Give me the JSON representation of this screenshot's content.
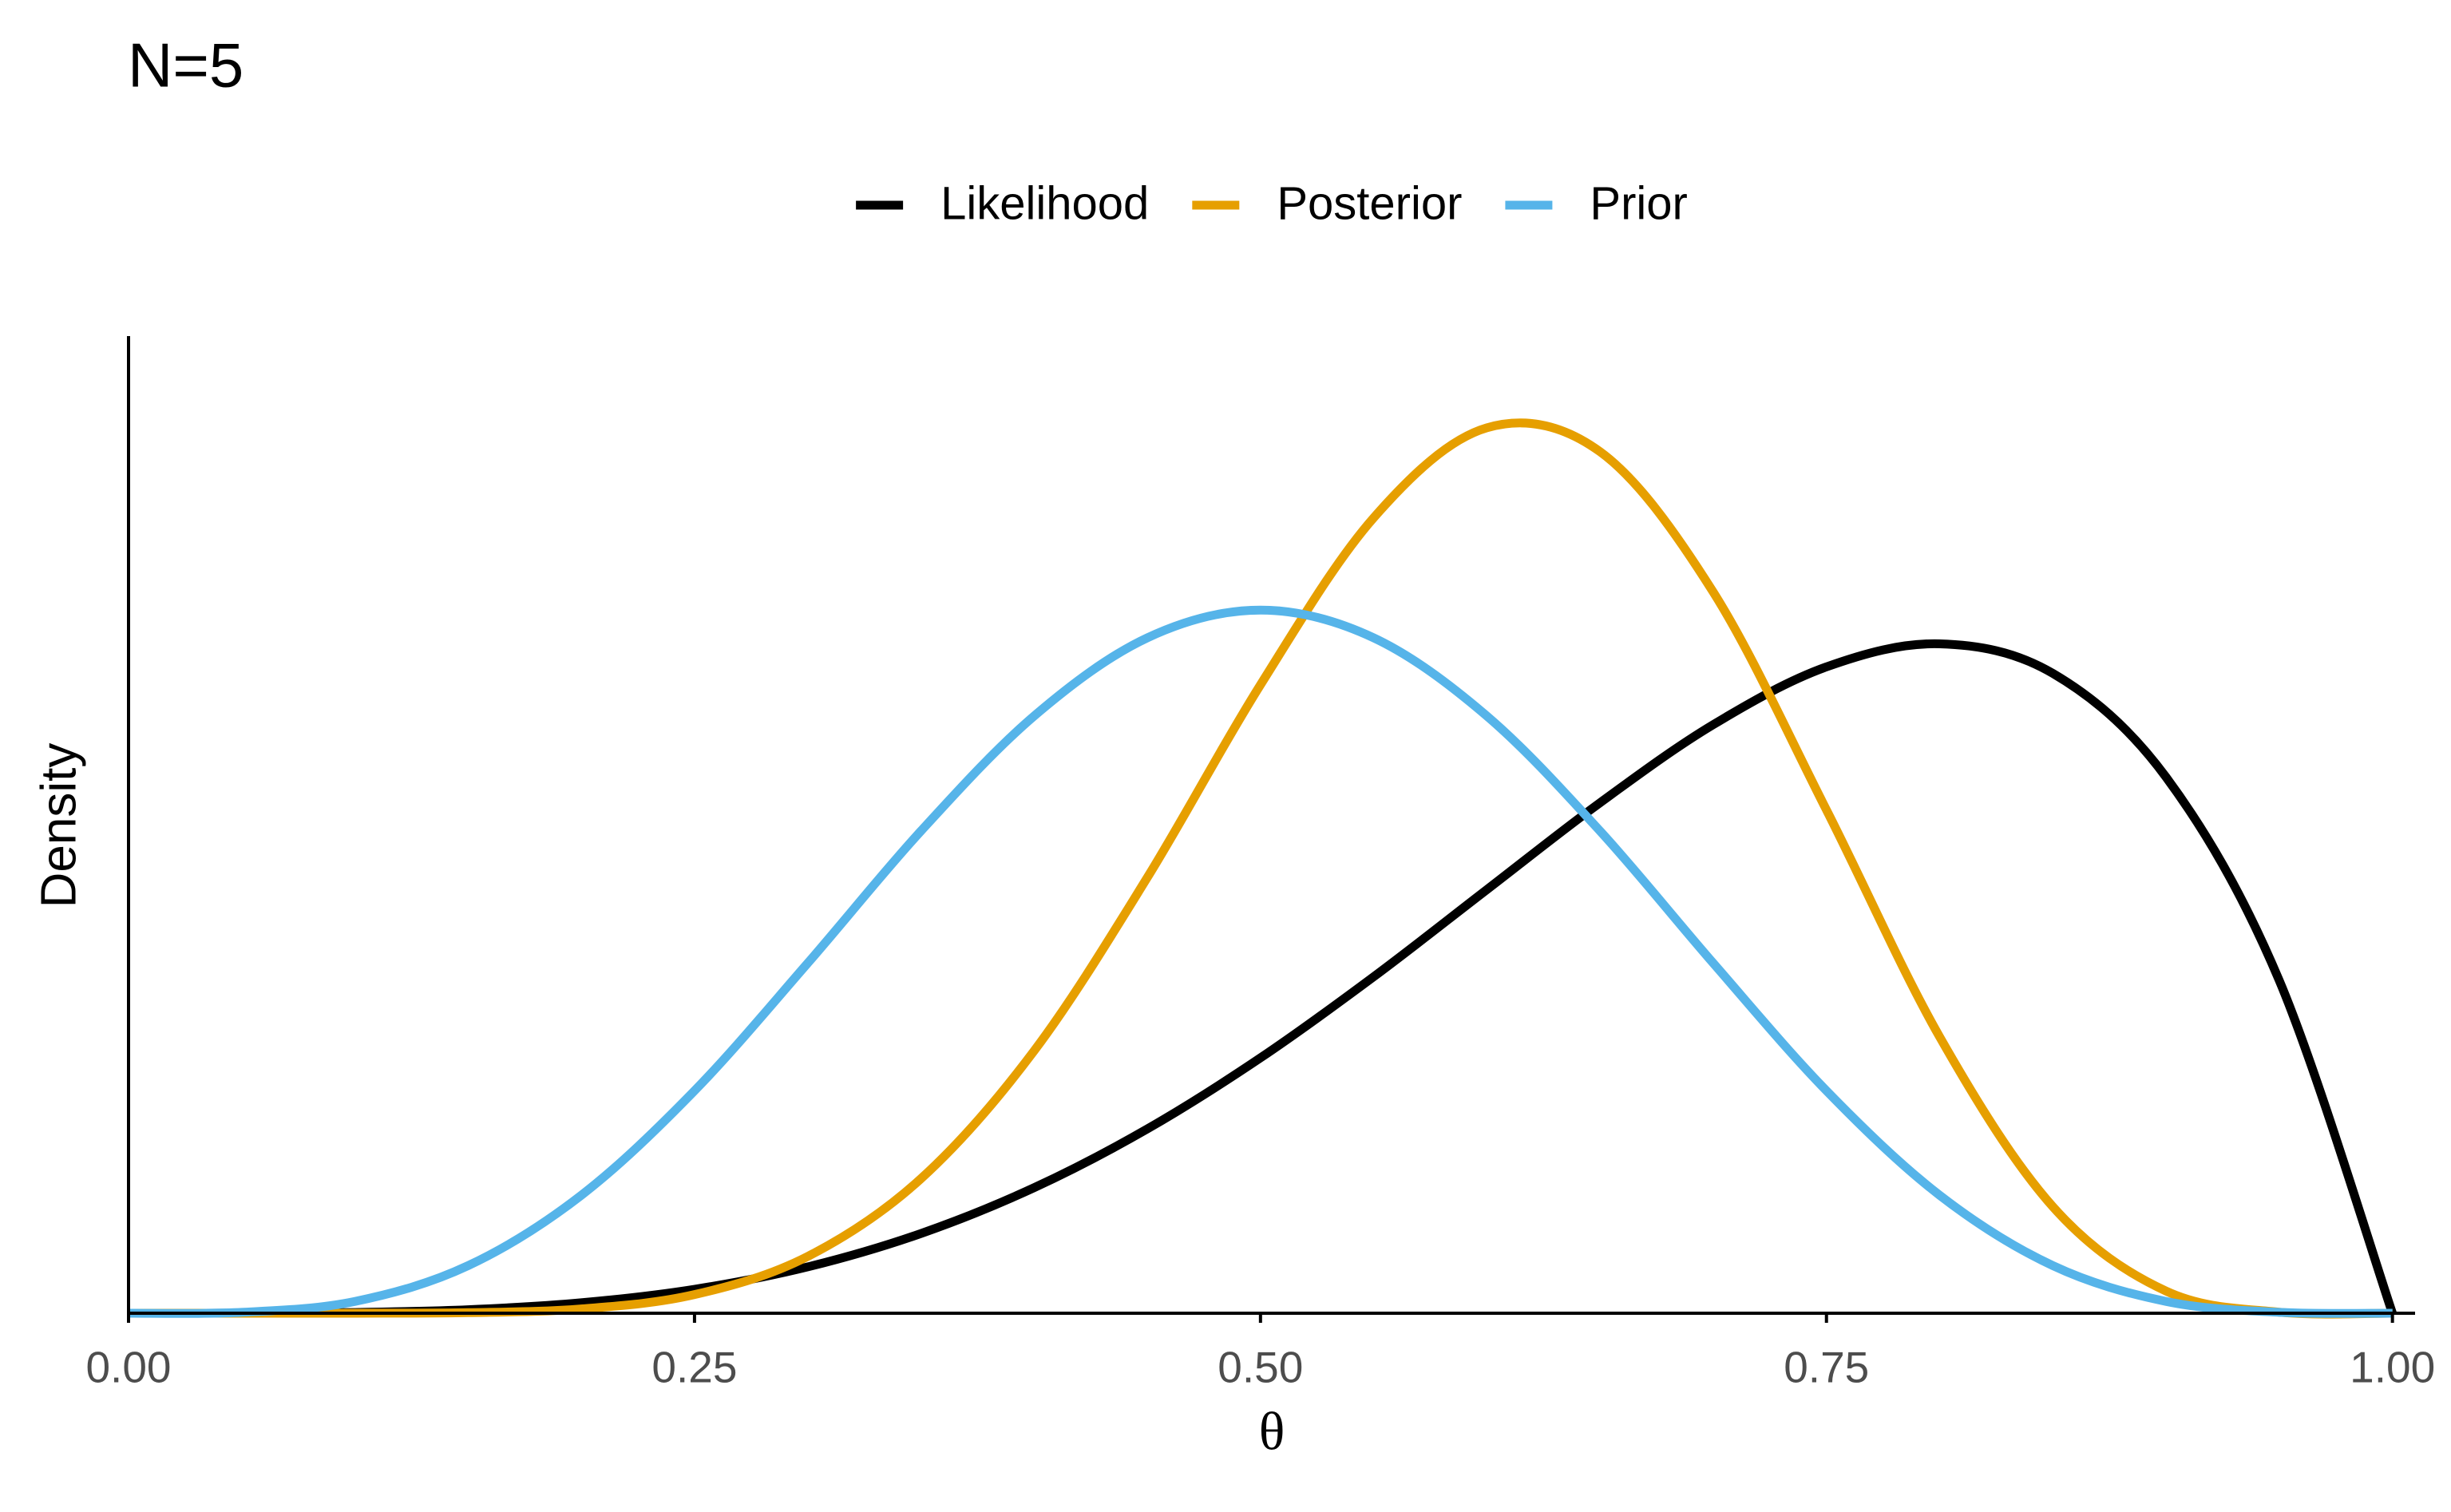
{
  "chart_data": {
    "type": "line",
    "title": "N=5",
    "x_label": "θ",
    "y_label": "Density",
    "x": [
      0,
      0.05,
      0.1,
      0.15,
      0.2,
      0.25,
      0.3,
      0.35,
      0.4,
      0.45,
      0.5,
      0.55,
      0.6,
      0.65,
      0.7,
      0.75,
      0.8,
      0.85,
      0.9,
      0.95,
      1
    ],
    "series": [
      {
        "name": "Likelihood",
        "color": "#000000",
        "values": [
          0,
          0.0002,
          0.0026,
          0.0123,
          0.0366,
          0.0838,
          0.1622,
          0.279,
          0.4393,
          0.645,
          0.8938,
          1.1777,
          1.4826,
          1.7868,
          2.0601,
          2.2623,
          2.3429,
          2.2394,
          1.8764,
          1.1647,
          0
        ]
      },
      {
        "name": "Posterior",
        "color": "#E69F00",
        "values": [
          0,
          0,
          0.0001,
          0.002,
          0.0151,
          0.0652,
          0.1987,
          0.4708,
          0.9182,
          1.5248,
          2.1995,
          2.7841,
          3.099,
          3.0153,
          2.524,
          1.7615,
          0.9673,
          0.3728,
          0.0776,
          0.0037,
          0
        ]
      },
      {
        "name": "Prior",
        "color": "#56B4E9",
        "values": [
          0,
          0.0032,
          0.0413,
          0.1665,
          0.4129,
          0.7787,
          1.2252,
          1.6876,
          2.0902,
          2.3639,
          2.4609,
          2.3639,
          2.0902,
          1.6876,
          1.2252,
          0.7787,
          0.4129,
          0.1665,
          0.0413,
          0.0032,
          0
        ]
      }
    ],
    "xlim": [
      0,
      1.01
    ],
    "xticks": [
      {
        "value": 0,
        "label": "0.00"
      },
      0.25,
      {
        "value": 0.5,
        "label": "0.50"
      },
      0.75,
      {
        "value": 1,
        "label": "1.00"
      }
    ],
    "ylim": [
      0,
      3.42
    ],
    "grid": false,
    "legend": "top"
  }
}
